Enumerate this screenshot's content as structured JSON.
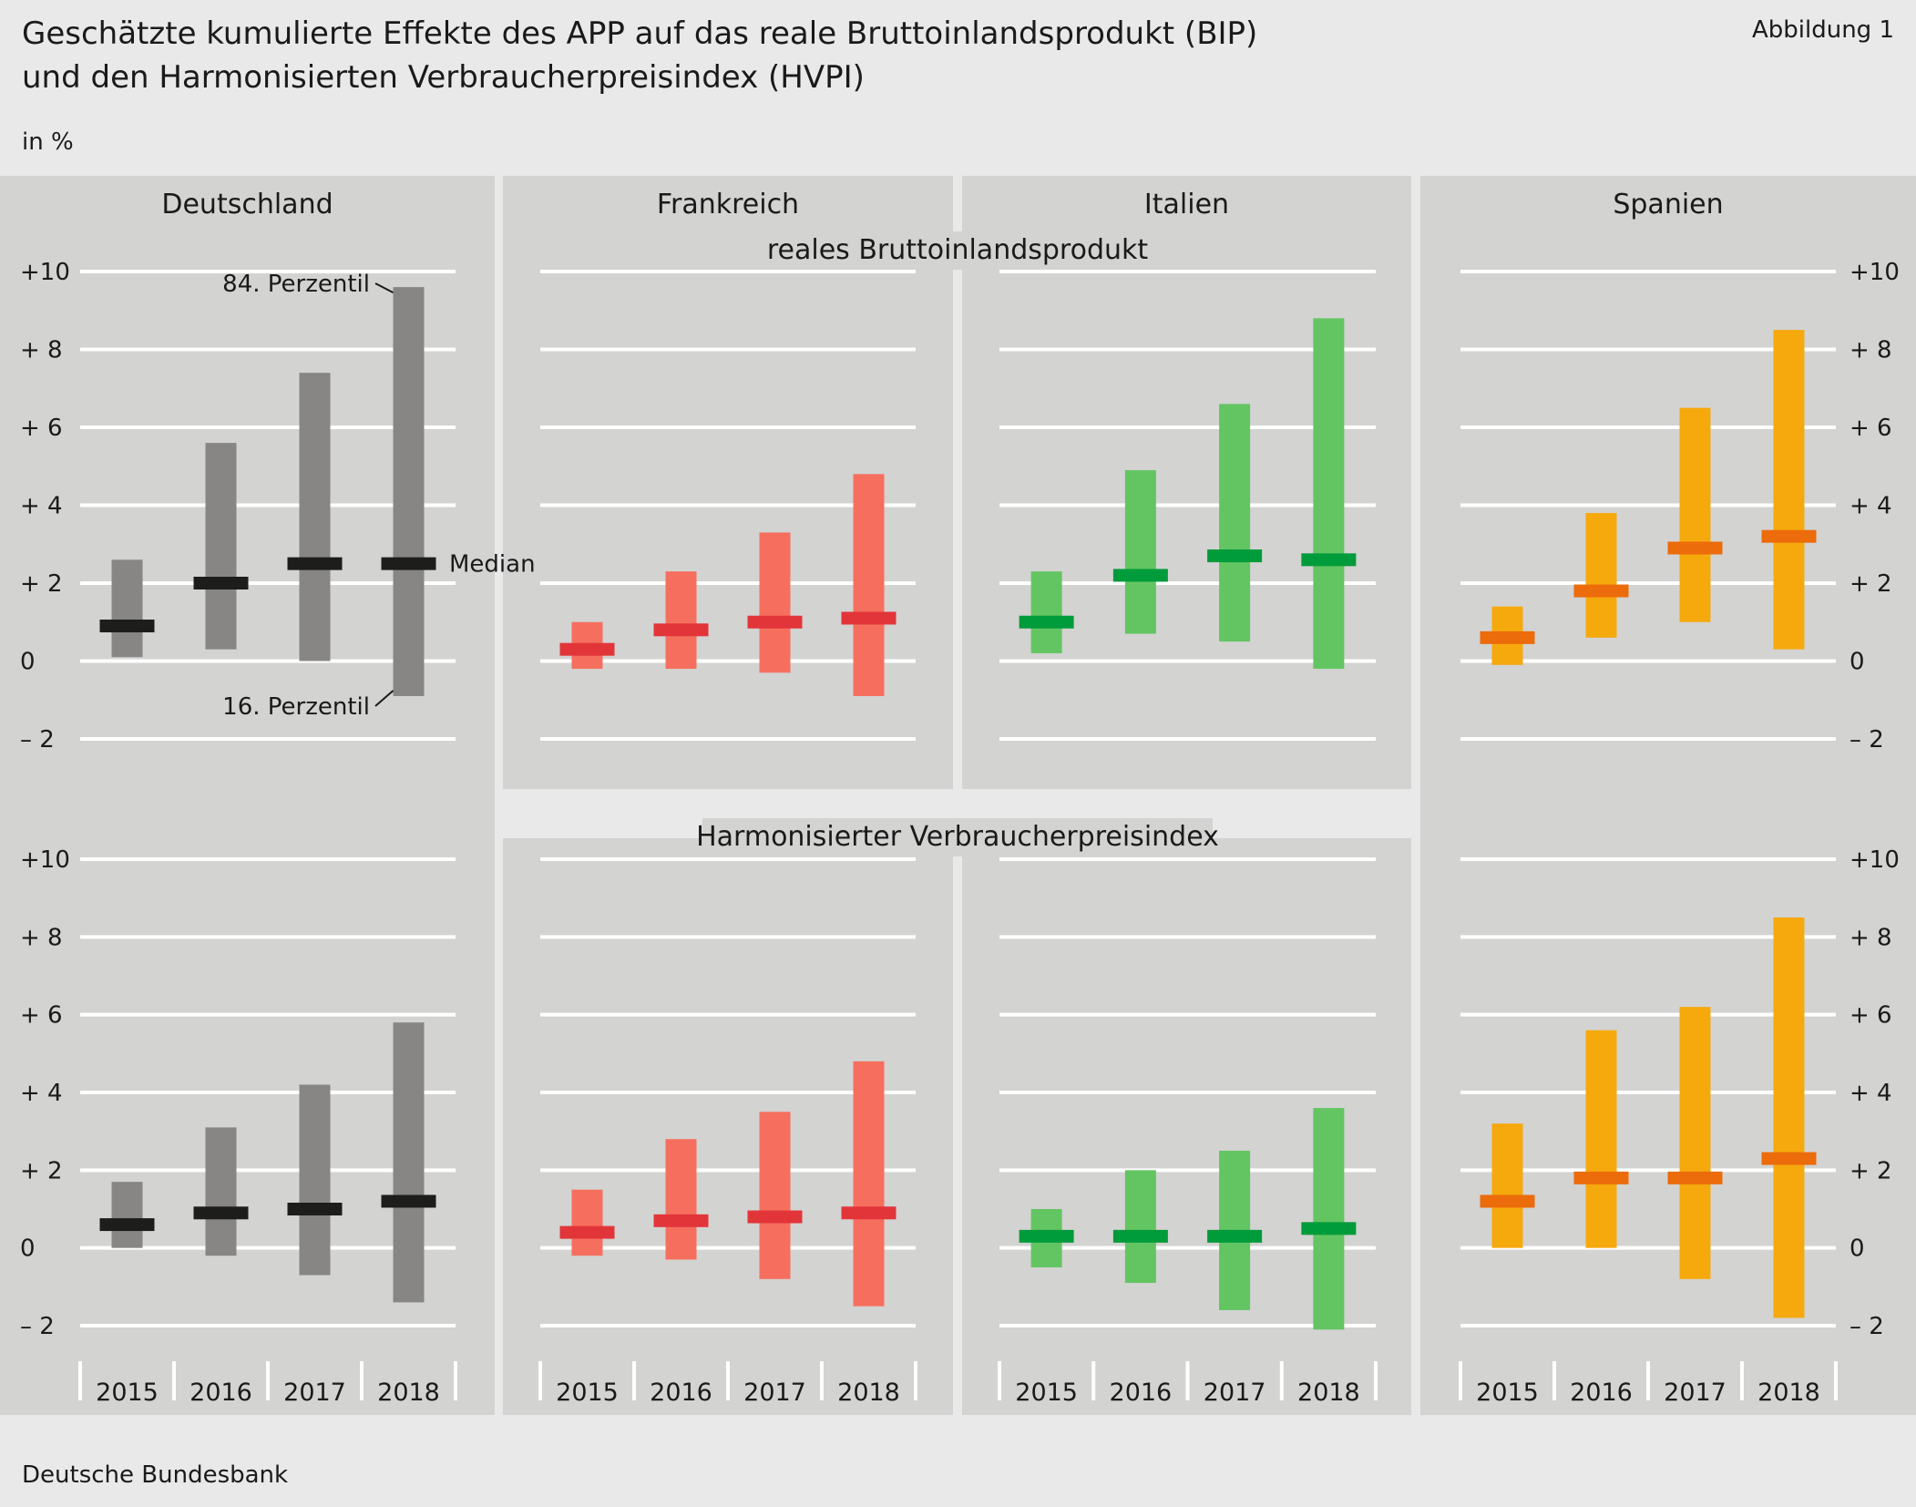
{
  "header": {
    "title_line1": "Geschätzte kumulierte Effekte des APP auf das reale Bruttoinlandsprodukt (BIP)",
    "title_line2": "und den Harmonisierten Verbraucherpreisindex (HVPI)",
    "figure_label": "Abbildung 1",
    "unit": "in %"
  },
  "footer": {
    "source": "Deutsche Bundesbank"
  },
  "annotations": {
    "upper_percentile": "84. Perzentil",
    "median": "Median",
    "lower_percentile": "16. Perzentil"
  },
  "colors": {
    "panel_bg": "#d3d3d2",
    "page_bg": "#e9e9e9",
    "grid": "#ffffff",
    "Deutschland": {
      "range": "#878685",
      "median": "#1d1d1b"
    },
    "Frankreich": {
      "range": "#f66f5e",
      "median": "#e2353a"
    },
    "Italien": {
      "range": "#63c562",
      "median": "#009b3a"
    },
    "Spanien": {
      "range": "#f6a90d",
      "median": "#ec6b0a"
    }
  },
  "chart_data": {
    "type": "range-bar",
    "countries": [
      "Deutschland",
      "Frankreich",
      "Italien",
      "Spanien"
    ],
    "years": [
      "2015",
      "2016",
      "2017",
      "2018"
    ],
    "ylim": [
      -2,
      10
    ],
    "yticks": [
      -2,
      0,
      2,
      4,
      6,
      8,
      10
    ],
    "ytick_labels": [
      "– 2",
      "0",
      "+ 2",
      "+ 4",
      "+ 6",
      "+ 8",
      "+10"
    ],
    "grid": true,
    "rows": [
      {
        "label": "reales Bruttoinlandsprodukt",
        "series": {
          "Deutschland": {
            "p16": [
              0.1,
              0.3,
              0.0,
              -0.9
            ],
            "median": [
              0.9,
              2.0,
              2.5,
              2.5
            ],
            "p84": [
              2.6,
              5.6,
              7.4,
              9.6
            ]
          },
          "Frankreich": {
            "p16": [
              -0.2,
              -0.2,
              -0.3,
              -0.9
            ],
            "median": [
              0.3,
              0.8,
              1.0,
              1.1
            ],
            "p84": [
              1.0,
              2.3,
              3.3,
              4.8
            ]
          },
          "Italien": {
            "p16": [
              0.2,
              0.7,
              0.5,
              -0.2
            ],
            "median": [
              1.0,
              2.2,
              2.7,
              2.6
            ],
            "p84": [
              2.3,
              4.9,
              6.6,
              8.8
            ]
          },
          "Spanien": {
            "p16": [
              -0.1,
              0.6,
              1.0,
              0.3
            ],
            "median": [
              0.6,
              1.8,
              2.9,
              3.2
            ],
            "p84": [
              1.4,
              3.8,
              6.5,
              8.5
            ]
          }
        }
      },
      {
        "label": "Harmonisierter Verbraucherpreisindex",
        "series": {
          "Deutschland": {
            "p16": [
              0.0,
              -0.2,
              -0.7,
              -1.4
            ],
            "median": [
              0.6,
              0.9,
              1.0,
              1.2
            ],
            "p84": [
              1.7,
              3.1,
              4.2,
              5.8
            ]
          },
          "Frankreich": {
            "p16": [
              -0.2,
              -0.3,
              -0.8,
              -1.5
            ],
            "median": [
              0.4,
              0.7,
              0.8,
              0.9
            ],
            "p84": [
              1.5,
              2.8,
              3.5,
              4.8
            ]
          },
          "Italien": {
            "p16": [
              -0.5,
              -0.9,
              -1.6,
              -2.1
            ],
            "median": [
              0.3,
              0.3,
              0.3,
              0.5
            ],
            "p84": [
              1.0,
              2.0,
              2.5,
              3.6
            ]
          },
          "Spanien": {
            "p16": [
              0.0,
              0.0,
              -0.8,
              -1.8
            ],
            "median": [
              1.2,
              1.8,
              1.8,
              2.3
            ],
            "p84": [
              3.2,
              5.6,
              6.2,
              8.5
            ]
          }
        }
      }
    ]
  }
}
